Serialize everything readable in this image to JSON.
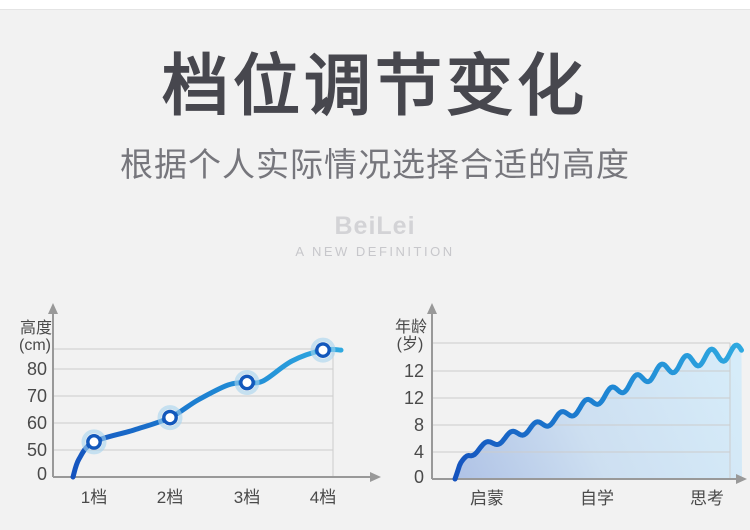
{
  "header": {
    "title": "档位调节变化",
    "subtitle": "根据个人实际情况选择合适的高度"
  },
  "brand": {
    "name": "BeiLei",
    "tagline": "A NEW DEFINITION"
  },
  "colors": {
    "background": "#f2f2f2",
    "title_text": "#47474e",
    "subtitle_text": "#76767c",
    "brand_text": "#d3d3d6",
    "axis": "#999999",
    "grid": "#cccccc",
    "tick_text": "#4a4a4a",
    "line_gradient_start": "#1553be",
    "line_gradient_mid": "#1e85d3",
    "line_gradient_end": "#2fa9e0",
    "marker_ring": "#1258bc",
    "marker_halo": "#a6d3ef",
    "area_fill_start": "#afc2e5",
    "area_fill_mid": "#cddff1",
    "area_fill_end": "#d6ecf9"
  },
  "chart_data": [
    {
      "type": "line",
      "name": "height-by-gear",
      "title": "",
      "ylabel": "高度(cm)",
      "ylabel_lines": [
        "高度",
        "(cm)"
      ],
      "categories": [
        "1档",
        "2档",
        "3档",
        "4档"
      ],
      "values": [
        53,
        62,
        75,
        87
      ],
      "y_ticks": [
        "0",
        "50",
        "60",
        "70",
        "80"
      ],
      "ylim": [
        0,
        88
      ],
      "axis_note": "broken y-axis: 0 then 50–80, arrows on both axes",
      "grid": "horizontal",
      "legend": "none",
      "marker": "white circle with dark blue ring and light halo"
    },
    {
      "type": "area",
      "name": "age-by-stage",
      "title": "",
      "ylabel": "年龄(岁)",
      "ylabel_lines": [
        "年龄",
        "(岁)"
      ],
      "categories": [
        "启蒙",
        "自学",
        "思考"
      ],
      "values": [
        5,
        10.5,
        13.5
      ],
      "y_ticks": [
        "0",
        "4",
        "8",
        "12",
        "12"
      ],
      "ylim": [
        0,
        14
      ],
      "axis_note": "rising wavy line with gradient area fill; tick label 12 repeated as printed",
      "grid": "horizontal",
      "legend": "none"
    }
  ]
}
